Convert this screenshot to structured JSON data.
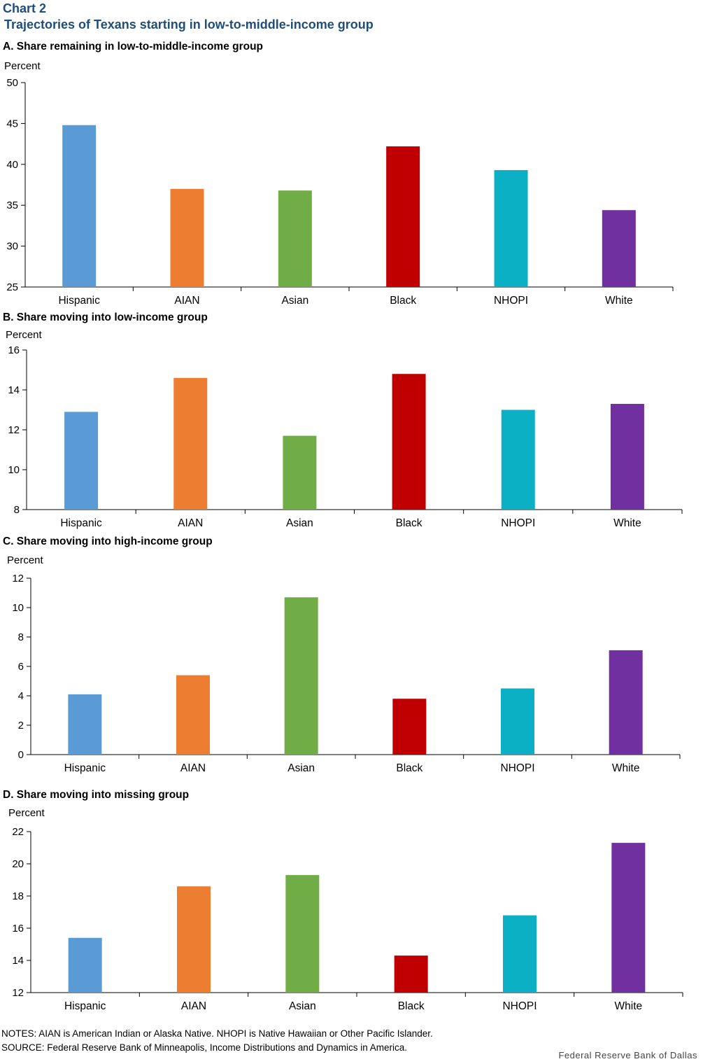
{
  "header": {
    "chart_label": "Chart 2",
    "title": "Trajectories of Texans starting in low-to-middle-income group"
  },
  "colors": [
    "#5b9bd5",
    "#ed7d31",
    "#70ad47",
    "#c00000",
    "#0bb0c4",
    "#7030a0"
  ],
  "chart_data": [
    {
      "type": "bar",
      "panel_title": "A. Share remaining in low-to-middle-income group",
      "ylabel": "Percent",
      "categories": [
        "Hispanic",
        "AIAN",
        "Asian",
        "Black",
        "NHOPI",
        "White"
      ],
      "values": [
        44.8,
        37.0,
        36.8,
        42.2,
        39.3,
        34.4
      ],
      "ylim": [
        25,
        50
      ],
      "yticks": [
        25,
        30,
        35,
        40,
        45,
        50
      ]
    },
    {
      "type": "bar",
      "panel_title": "B. Share moving into low-income group",
      "ylabel": "Percent",
      "categories": [
        "Hispanic",
        "AIAN",
        "Asian",
        "Black",
        "NHOPI",
        "White"
      ],
      "values": [
        12.9,
        14.6,
        11.7,
        14.8,
        13.0,
        13.3
      ],
      "ylim": [
        8,
        16
      ],
      "yticks": [
        8,
        10,
        12,
        14,
        16
      ]
    },
    {
      "type": "bar",
      "panel_title": "C. Share moving into high-income group",
      "ylabel": "Percent",
      "categories": [
        "Hispanic",
        "AIAN",
        "Asian",
        "Black",
        "NHOPI",
        "White"
      ],
      "values": [
        4.1,
        5.4,
        10.7,
        3.8,
        4.5,
        7.1
      ],
      "ylim": [
        0,
        12
      ],
      "yticks": [
        0,
        2,
        4,
        6,
        8,
        10,
        12
      ]
    },
    {
      "type": "bar",
      "panel_title": "D. Share moving into missing group",
      "ylabel": "Percent",
      "categories": [
        "Hispanic",
        "AIAN",
        "Asian",
        "Black",
        "NHOPI",
        "White"
      ],
      "values": [
        15.4,
        18.6,
        19.3,
        14.3,
        16.8,
        21.3
      ],
      "ylim": [
        12,
        22
      ],
      "yticks": [
        12,
        14,
        16,
        18,
        20,
        22
      ]
    }
  ],
  "footer": {
    "notes": "NOTES: AIAN is American Indian or Alaska Native. NHOPI is Native Hawaiian or Other Pacific Islander.",
    "source": "SOURCE: Federal Reserve Bank of Minneapolis, Income Distributions and Dynamics in America.",
    "credit": "Federal Reserve Bank of Dallas"
  }
}
